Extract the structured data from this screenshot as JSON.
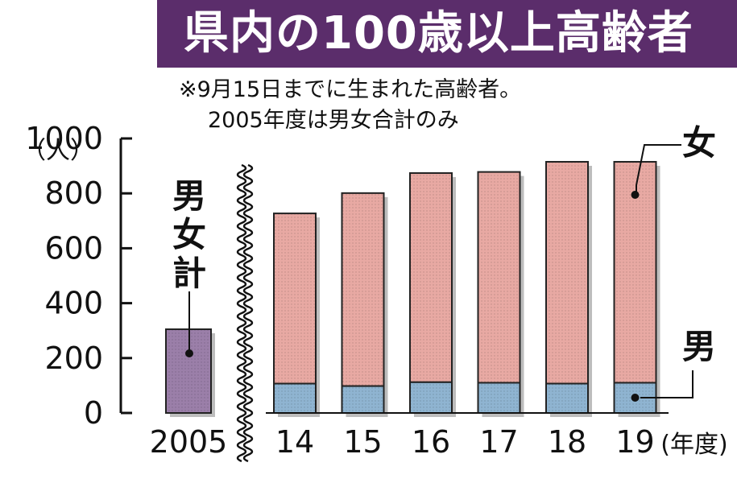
{
  "title": "県内の100歳以上高齢者",
  "notes": [
    "※9月15日までに生まれた高齢者。",
    "2005年度は男女合計のみ"
  ],
  "colors": {
    "title_band": "#5b2d6b",
    "female": "#e8a9a3",
    "male": "#8fb4d1",
    "total": "#9b7fa9",
    "shadow": "#bdbdbd"
  },
  "chart_data": {
    "type": "bar",
    "stacked": true,
    "y_unit": "（人）",
    "x_unit": "(年度)",
    "ylim": [
      0,
      1000
    ],
    "y_ticks": [
      "1000",
      "800",
      "600",
      "400",
      "200",
      "0"
    ],
    "axis_break": true,
    "total_bar": {
      "category": "2005",
      "label": "男女計",
      "value": 305
    },
    "categories": [
      "14",
      "15",
      "16",
      "17",
      "18",
      "19"
    ],
    "series": [
      {
        "name": "男",
        "values": [
          107,
          98,
          112,
          110,
          107,
          110
        ]
      },
      {
        "name": "女",
        "values": [
          620,
          703,
          762,
          768,
          808,
          805
        ]
      }
    ]
  }
}
